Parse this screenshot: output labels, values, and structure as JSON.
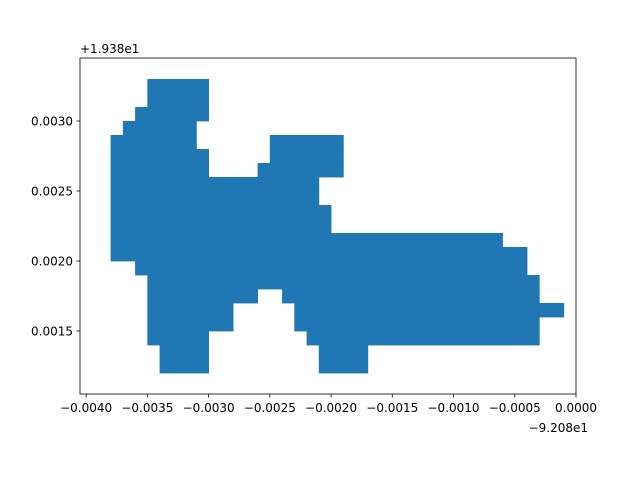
{
  "chart_data": {
    "type": "area",
    "title": "",
    "xlabel": "",
    "ylabel": "",
    "x_offset_label": "−9.208e1",
    "y_offset_label": "+1.938e1",
    "x_offset": -92.08,
    "y_offset": 19.38,
    "xlim": [
      -0.00405,
      0.0
    ],
    "ylim": [
      0.00105,
      0.00345
    ],
    "x_ticks": [
      -0.004,
      -0.0035,
      -0.003,
      -0.0025,
      -0.002,
      -0.0015,
      -0.001,
      -0.0005,
      0.0
    ],
    "x_tick_labels": [
      "−0.0040",
      "−0.0035",
      "−0.0030",
      "−0.0025",
      "−0.0020",
      "−0.0015",
      "−0.0010",
      "−0.0005",
      "0.0000"
    ],
    "y_ticks": [
      0.0015,
      0.002,
      0.0025,
      0.003
    ],
    "y_tick_labels": [
      "0.0015",
      "0.0020",
      "0.0025",
      "0.0030"
    ],
    "grid": false,
    "fill_color": "#1f77b4",
    "cell_size": [
      0.0001,
      0.0001
    ],
    "rows": [
      {
        "y0": 0.0012,
        "spans": [
          [
            -0.0034,
            -0.003
          ],
          [
            -0.0021,
            -0.0017
          ]
        ]
      },
      {
        "y0": 0.0013,
        "spans": [
          [
            -0.0034,
            -0.003
          ],
          [
            -0.0021,
            -0.0017
          ]
        ]
      },
      {
        "y0": 0.0014,
        "spans": [
          [
            -0.0035,
            -0.003
          ],
          [
            -0.0022,
            -0.0003
          ]
        ]
      },
      {
        "y0": 0.0015,
        "spans": [
          [
            -0.0035,
            -0.0028
          ],
          [
            -0.0023,
            -0.0003
          ]
        ]
      },
      {
        "y0": 0.0016,
        "spans": [
          [
            -0.0035,
            -0.0028
          ],
          [
            -0.0023,
            -0.0001
          ]
        ]
      },
      {
        "y0": 0.0017,
        "spans": [
          [
            -0.0035,
            -0.0026
          ],
          [
            -0.0024,
            -0.0003
          ]
        ]
      },
      {
        "y0": 0.0018,
        "spans": [
          [
            -0.0035,
            -0.0003
          ]
        ]
      },
      {
        "y0": 0.0019,
        "spans": [
          [
            -0.0036,
            -0.0004
          ]
        ]
      },
      {
        "y0": 0.002,
        "spans": [
          [
            -0.0038,
            -0.0004
          ]
        ]
      },
      {
        "y0": 0.0021,
        "spans": [
          [
            -0.0038,
            -0.0006
          ]
        ]
      },
      {
        "y0": 0.0022,
        "spans": [
          [
            -0.0038,
            -0.002
          ]
        ]
      },
      {
        "y0": 0.0023,
        "spans": [
          [
            -0.0038,
            -0.002
          ]
        ]
      },
      {
        "y0": 0.0024,
        "spans": [
          [
            -0.0038,
            -0.0021
          ]
        ]
      },
      {
        "y0": 0.0025,
        "spans": [
          [
            -0.0038,
            -0.0021
          ]
        ]
      },
      {
        "y0": 0.0026,
        "spans": [
          [
            -0.0038,
            -0.003
          ],
          [
            -0.0026,
            -0.0019
          ]
        ]
      },
      {
        "y0": 0.0027,
        "spans": [
          [
            -0.0038,
            -0.003
          ],
          [
            -0.0025,
            -0.0019
          ]
        ]
      },
      {
        "y0": 0.0028,
        "spans": [
          [
            -0.0038,
            -0.0031
          ],
          [
            -0.0025,
            -0.0019
          ]
        ]
      },
      {
        "y0": 0.0029,
        "spans": [
          [
            -0.0037,
            -0.0031
          ]
        ]
      },
      {
        "y0": 0.003,
        "spans": [
          [
            -0.0036,
            -0.003
          ]
        ]
      },
      {
        "y0": 0.0031,
        "spans": [
          [
            -0.0035,
            -0.003
          ]
        ]
      },
      {
        "y0": 0.0032,
        "spans": [
          [
            -0.0035,
            -0.003
          ]
        ]
      }
    ]
  }
}
